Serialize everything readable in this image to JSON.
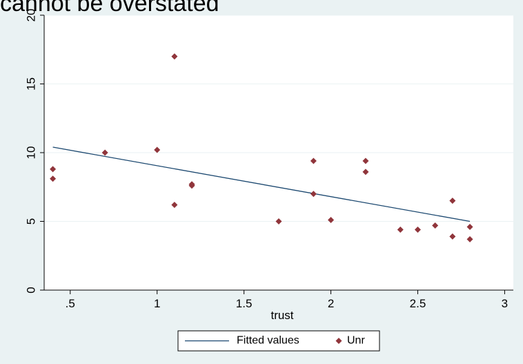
{
  "heading_fragment": "cannot be overstated",
  "chart_data": {
    "type": "scatter",
    "title": "",
    "xlabel": "trust",
    "ylabel": "",
    "xlim": [
      0.35,
      3.05
    ],
    "ylim": [
      0,
      20
    ],
    "xticks": [
      0.5,
      1,
      1.5,
      2,
      2.5,
      3
    ],
    "xtick_labels": [
      ".5",
      "1",
      "1.5",
      "2",
      "2.5",
      "3"
    ],
    "yticks": [
      0,
      5,
      10,
      15,
      20
    ],
    "ytick_labels": [
      "0",
      "5",
      "10",
      "15",
      "20"
    ],
    "grid": "horizontal",
    "legend_position": "bottom",
    "series": [
      {
        "name": "Fitted values",
        "kind": "line",
        "color": "#1a476f",
        "points": [
          [
            0.4,
            10.4
          ],
          [
            2.8,
            5.0
          ]
        ]
      },
      {
        "name": "Unr",
        "kind": "scatter",
        "marker": "diamond",
        "color": "#90353b",
        "points": [
          [
            0.4,
            8.8
          ],
          [
            0.4,
            8.1
          ],
          [
            0.7,
            10.0
          ],
          [
            1.0,
            10.2
          ],
          [
            1.1,
            17.0
          ],
          [
            1.1,
            6.2
          ],
          [
            1.2,
            7.7
          ],
          [
            1.2,
            7.6
          ],
          [
            1.7,
            5.0
          ],
          [
            1.9,
            9.4
          ],
          [
            1.9,
            7.0
          ],
          [
            2.0,
            5.1
          ],
          [
            2.2,
            9.4
          ],
          [
            2.2,
            8.6
          ],
          [
            2.4,
            4.4
          ],
          [
            2.5,
            4.4
          ],
          [
            2.6,
            4.7
          ],
          [
            2.7,
            6.5
          ],
          [
            2.7,
            3.9
          ],
          [
            2.8,
            4.6
          ],
          [
            2.8,
            3.7
          ]
        ]
      }
    ],
    "colors": {
      "background": "#eaf2f3",
      "plot_background": "#ffffff",
      "grid": "#eaf2f3",
      "axis": "#000000"
    }
  }
}
